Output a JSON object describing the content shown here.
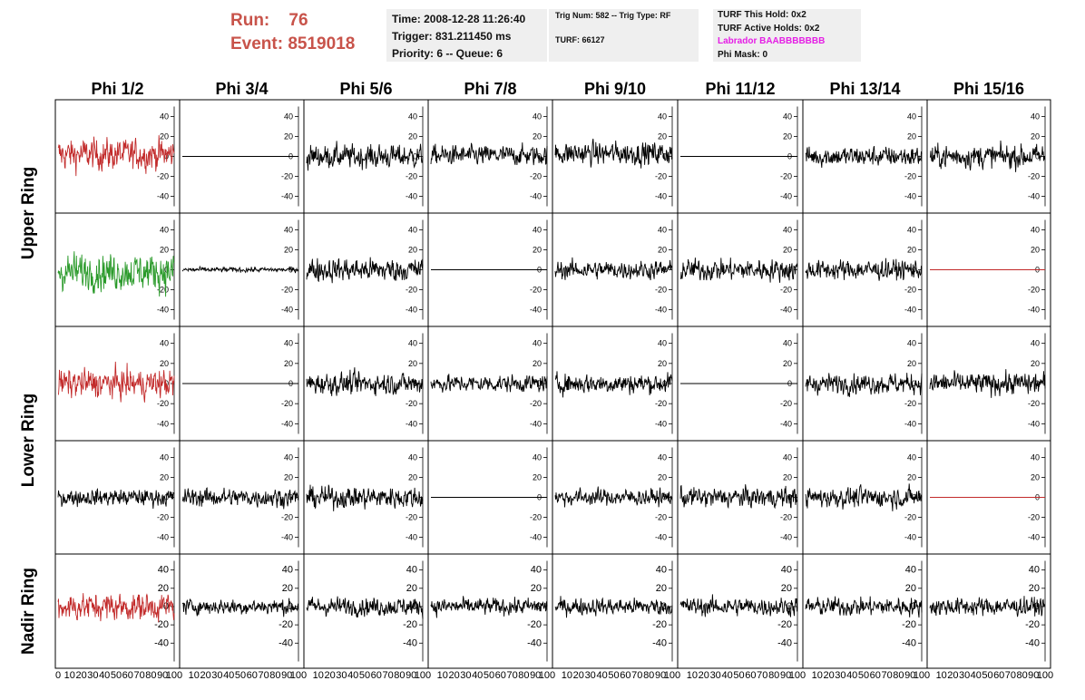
{
  "header": {
    "run_label": "Run:",
    "run_value": "76",
    "event_label": "Event:",
    "event_value": "8519018"
  },
  "time_box": {
    "time": "Time: 2008-12-28 11:26:40",
    "trigger": "Trigger: 831.211450 ms",
    "priority": "Priority: 6 -- Queue: 6"
  },
  "trig_box": {
    "trig": "Trig Num: 582 -- Trig Type: RF",
    "turf": "TURF: 66127"
  },
  "turf_box": {
    "this_hold": "TURF This Hold: 0x2",
    "active_holds": "TURF Active Holds: 0x2",
    "labrador": "Labrador BAABBBBBBB",
    "phi_mask": "Phi Mask: 0"
  },
  "colors": {
    "title_red": "#c8534a",
    "trace_red": "#c22a2a",
    "trace_green": "#2a9a2a",
    "trace_black": "#000000",
    "labrador_magenta": "#e51ee5",
    "box_gray": "#efefef"
  },
  "chart_data": {
    "type": "line",
    "columns": [
      "Phi 1/2",
      "Phi 3/4",
      "Phi 5/6",
      "Phi 7/8",
      "Phi 9/10",
      "Phi 11/12",
      "Phi 13/14",
      "Phi 15/16"
    ],
    "ring_labels": [
      {
        "label": "Upper Ring",
        "rows": [
          0,
          1
        ]
      },
      {
        "label": "Lower Ring",
        "rows": [
          2,
          3
        ]
      },
      {
        "label": "Nadir Ring",
        "rows": [
          4
        ]
      }
    ],
    "xlim": [
      0,
      100
    ],
    "x_tick_labels": [
      "0",
      "10",
      "20",
      "30",
      "40",
      "50",
      "60",
      "70",
      "80",
      "90",
      "100"
    ],
    "ylim_small": [
      -50,
      50
    ],
    "y_ticks_small": [
      40,
      20,
      0,
      -20,
      -40
    ],
    "ylim_nadir": [
      -60,
      50
    ],
    "y_ticks_nadir": [
      40,
      20,
      0,
      -20,
      -40
    ],
    "grid": false,
    "legend": "none",
    "panels": [
      [
        {
          "color": "red",
          "amplitude": 19,
          "mean": 2
        },
        {
          "color": "black",
          "amplitude": 0,
          "mean": 0
        },
        {
          "color": "black",
          "amplitude": 14,
          "mean": 0
        },
        {
          "color": "black",
          "amplitude": 12,
          "mean": 1
        },
        {
          "color": "black",
          "amplitude": 14,
          "mean": 3
        },
        {
          "color": "black",
          "amplitude": 0,
          "mean": 0
        },
        {
          "color": "black",
          "amplitude": 12,
          "mean": 0
        },
        {
          "color": "black",
          "amplitude": 14,
          "mean": 0
        }
      ],
      [
        {
          "color": "green",
          "amplitude": 22,
          "mean": -2
        },
        {
          "color": "black",
          "amplitude": 3,
          "mean": 0
        },
        {
          "color": "black",
          "amplitude": 14,
          "mean": 0
        },
        {
          "color": "black",
          "amplitude": 0,
          "mean": 0
        },
        {
          "color": "black",
          "amplitude": 11,
          "mean": 0
        },
        {
          "color": "black",
          "amplitude": 13,
          "mean": 0
        },
        {
          "color": "black",
          "amplitude": 12,
          "mean": 0
        },
        {
          "color": "red",
          "amplitude": 0,
          "mean": 0
        }
      ],
      [
        {
          "color": "red",
          "amplitude": 17,
          "mean": 0
        },
        {
          "color": "black",
          "amplitude": 0,
          "mean": 0
        },
        {
          "color": "black",
          "amplitude": 13,
          "mean": 0
        },
        {
          "color": "black",
          "amplitude": 10,
          "mean": 0
        },
        {
          "color": "black",
          "amplitude": 12,
          "mean": 0
        },
        {
          "color": "black",
          "amplitude": 0,
          "mean": 0
        },
        {
          "color": "black",
          "amplitude": 12,
          "mean": 0
        },
        {
          "color": "black",
          "amplitude": 13,
          "mean": 0
        }
      ],
      [
        {
          "color": "black",
          "amplitude": 10,
          "mean": 0
        },
        {
          "color": "black",
          "amplitude": 11,
          "mean": 0
        },
        {
          "color": "black",
          "amplitude": 13,
          "mean": 0
        },
        {
          "color": "black",
          "amplitude": 0,
          "mean": 0
        },
        {
          "color": "black",
          "amplitude": 10,
          "mean": 0
        },
        {
          "color": "black",
          "amplitude": 12,
          "mean": 0
        },
        {
          "color": "black",
          "amplitude": 12,
          "mean": 0
        },
        {
          "color": "red",
          "amplitude": 0,
          "mean": 0
        }
      ],
      [
        {
          "color": "red",
          "amplitude": 18,
          "mean": 0
        },
        {
          "color": "black",
          "amplitude": 10,
          "mean": 0
        },
        {
          "color": "black",
          "amplitude": 12,
          "mean": 0
        },
        {
          "color": "black",
          "amplitude": 11,
          "mean": 0
        },
        {
          "color": "black",
          "amplitude": 11,
          "mean": 0
        },
        {
          "color": "black",
          "amplitude": 12,
          "mean": 0
        },
        {
          "color": "black",
          "amplitude": 12,
          "mean": 0
        },
        {
          "color": "black",
          "amplitude": 12,
          "mean": 0
        }
      ]
    ]
  }
}
